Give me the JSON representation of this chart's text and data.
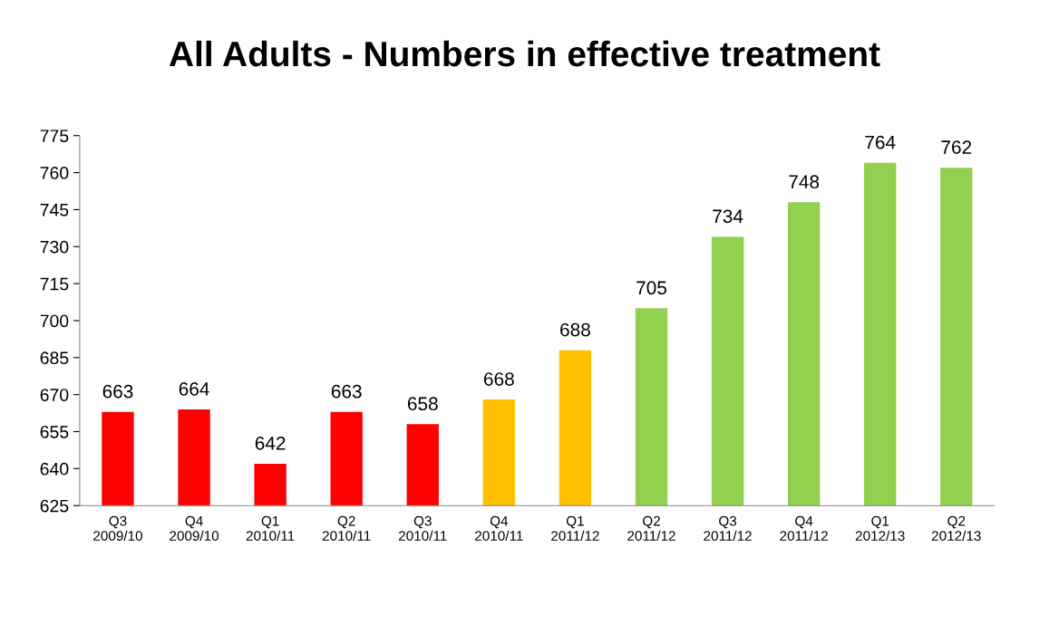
{
  "chart_data": {
    "type": "bar",
    "title": "All Adults - Numbers in effective treatment",
    "categories": [
      "Q3\n2009/10",
      "Q4\n2009/10",
      "Q1\n2010/11",
      "Q2\n2010/11",
      "Q3\n2010/11",
      "Q4\n2010/11",
      "Q1\n2011/12",
      "Q2\n2011/12",
      "Q3\n2011/12",
      "Q4\n2011/12",
      "Q1\n2012/13",
      "Q2\n2012/13"
    ],
    "values": [
      663,
      664,
      642,
      663,
      658,
      668,
      688,
      705,
      734,
      748,
      764,
      762
    ],
    "colors": [
      "#ff0000",
      "#ff0000",
      "#ff0000",
      "#ff0000",
      "#ff0000",
      "#ffc000",
      "#ffc000",
      "#92d050",
      "#92d050",
      "#92d050",
      "#92d050",
      "#92d050"
    ],
    "ylim": [
      625,
      775
    ],
    "yticks": [
      625,
      640,
      655,
      670,
      685,
      700,
      715,
      730,
      745,
      760,
      775
    ],
    "data_labels": true,
    "grid": false,
    "legend": false
  }
}
